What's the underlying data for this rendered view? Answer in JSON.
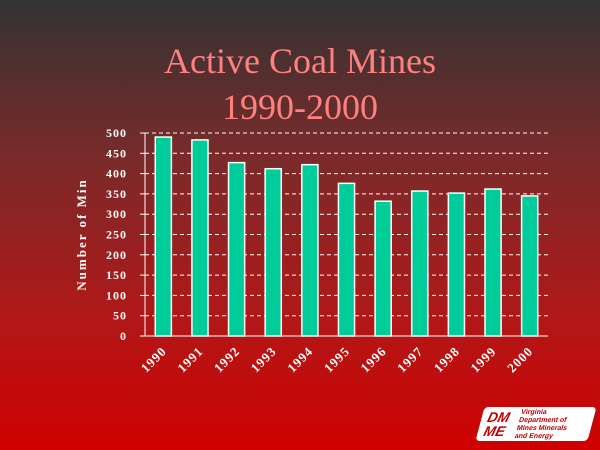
{
  "chart_data": {
    "type": "bar",
    "title": "Active Coal Mines",
    "subtitle": "1990-2000",
    "xlabel": "",
    "ylabel": "Number of Min",
    "categories": [
      "1990",
      "1991",
      "1992",
      "1993",
      "1994",
      "1995",
      "1996",
      "1997",
      "1998",
      "1999",
      "2000"
    ],
    "values": [
      490,
      483,
      427,
      412,
      422,
      376,
      332,
      357,
      352,
      362,
      345
    ],
    "ylim": [
      0,
      500
    ],
    "yticks": [
      0,
      50,
      100,
      150,
      200,
      250,
      300,
      350,
      400,
      450,
      500
    ],
    "grid": true,
    "bar_color": "#00cc99",
    "title_color": "#ff8080"
  },
  "logo": {
    "mark": "DMME",
    "text": "Virginia Department of Mines Minerals and Energy"
  }
}
